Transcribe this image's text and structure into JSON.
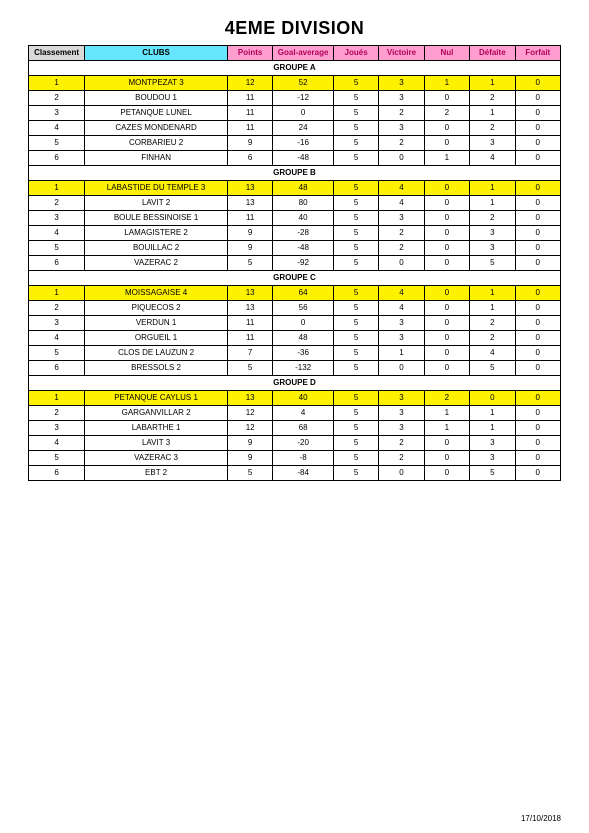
{
  "title": "4EME DIVISION",
  "footer_date": "17/10/2018",
  "headers": {
    "rank": "Classement",
    "club": "CLUBS",
    "points": "Points",
    "ga": "Goal-average",
    "played": "Joués",
    "win": "Victoire",
    "draw": "Nul",
    "loss": "Défaite",
    "forfeit": "Forfait"
  },
  "colors": {
    "header_rank_bg": "#d9d9d9",
    "header_club_bg": "#66e7ff",
    "header_stat_bg": "#ff9ecf",
    "header_stat_fg": "#b30059",
    "leader_bg": "#fff200",
    "border": "#000000",
    "background": "#ffffff"
  },
  "groups": [
    {
      "name": "GROUPE A",
      "rows": [
        {
          "rank": 1,
          "club": "MONTPEZAT 3",
          "pts": 12,
          "ga": 52,
          "j": 5,
          "v": 3,
          "n": 1,
          "d": 1,
          "f": 0,
          "leader": true
        },
        {
          "rank": 2,
          "club": "BOUDOU 1",
          "pts": 11,
          "ga": -12,
          "j": 5,
          "v": 3,
          "n": 0,
          "d": 2,
          "f": 0
        },
        {
          "rank": 3,
          "club": "PETANQUE LUNEL",
          "pts": 11,
          "ga": 0,
          "j": 5,
          "v": 2,
          "n": 2,
          "d": 1,
          "f": 0
        },
        {
          "rank": 4,
          "club": "CAZES MONDENARD",
          "pts": 11,
          "ga": 24,
          "j": 5,
          "v": 3,
          "n": 0,
          "d": 2,
          "f": 0
        },
        {
          "rank": 5,
          "club": "CORBARIEU 2",
          "pts": 9,
          "ga": -16,
          "j": 5,
          "v": 2,
          "n": 0,
          "d": 3,
          "f": 0
        },
        {
          "rank": 6,
          "club": "FINHAN",
          "pts": 6,
          "ga": -48,
          "j": 5,
          "v": 0,
          "n": 1,
          "d": 4,
          "f": 0
        }
      ]
    },
    {
      "name": "GROUPE B",
      "rows": [
        {
          "rank": 1,
          "club": "LABASTIDE DU TEMPLE 3",
          "pts": 13,
          "ga": 48,
          "j": 5,
          "v": 4,
          "n": 0,
          "d": 1,
          "f": 0,
          "leader": true
        },
        {
          "rank": 2,
          "club": "LAVIT 2",
          "pts": 13,
          "ga": 80,
          "j": 5,
          "v": 4,
          "n": 0,
          "d": 1,
          "f": 0
        },
        {
          "rank": 3,
          "club": "BOULE BESSINOISE 1",
          "pts": 11,
          "ga": 40,
          "j": 5,
          "v": 3,
          "n": 0,
          "d": 2,
          "f": 0
        },
        {
          "rank": 4,
          "club": "LAMAGISTERE 2",
          "pts": 9,
          "ga": -28,
          "j": 5,
          "v": 2,
          "n": 0,
          "d": 3,
          "f": 0
        },
        {
          "rank": 5,
          "club": "BOUILLAC 2",
          "pts": 9,
          "ga": -48,
          "j": 5,
          "v": 2,
          "n": 0,
          "d": 3,
          "f": 0
        },
        {
          "rank": 6,
          "club": "VAZERAC 2",
          "pts": 5,
          "ga": -92,
          "j": 5,
          "v": 0,
          "n": 0,
          "d": 5,
          "f": 0
        }
      ]
    },
    {
      "name": "GROUPE C",
      "rows": [
        {
          "rank": 1,
          "club": "MOISSAGAISE 4",
          "pts": 13,
          "ga": 64,
          "j": 5,
          "v": 4,
          "n": 0,
          "d": 1,
          "f": 0,
          "leader": true
        },
        {
          "rank": 2,
          "club": "PIQUECOS 2",
          "pts": 13,
          "ga": 56,
          "j": 5,
          "v": 4,
          "n": 0,
          "d": 1,
          "f": 0
        },
        {
          "rank": 3,
          "club": "VERDUN 1",
          "pts": 11,
          "ga": 0,
          "j": 5,
          "v": 3,
          "n": 0,
          "d": 2,
          "f": 0
        },
        {
          "rank": 4,
          "club": "ORGUEIL 1",
          "pts": 11,
          "ga": 48,
          "j": 5,
          "v": 3,
          "n": 0,
          "d": 2,
          "f": 0
        },
        {
          "rank": 5,
          "club": "CLOS DE LAUZUN 2",
          "pts": 7,
          "ga": -36,
          "j": 5,
          "v": 1,
          "n": 0,
          "d": 4,
          "f": 0
        },
        {
          "rank": 6,
          "club": "BRESSOLS 2",
          "pts": 5,
          "ga": -132,
          "j": 5,
          "v": 0,
          "n": 0,
          "d": 5,
          "f": 0
        }
      ]
    },
    {
      "name": "GROUPE D",
      "rows": [
        {
          "rank": 1,
          "club": "PETANQUE CAYLUS 1",
          "pts": 13,
          "ga": 40,
          "j": 5,
          "v": 3,
          "n": 2,
          "d": 0,
          "f": 0,
          "leader": true
        },
        {
          "rank": 2,
          "club": "GARGANVILLAR 2",
          "pts": 12,
          "ga": 4,
          "j": 5,
          "v": 3,
          "n": 1,
          "d": 1,
          "f": 0
        },
        {
          "rank": 3,
          "club": "LABARTHE 1",
          "pts": 12,
          "ga": 68,
          "j": 5,
          "v": 3,
          "n": 1,
          "d": 1,
          "f": 0
        },
        {
          "rank": 4,
          "club": "LAVIT 3",
          "pts": 9,
          "ga": -20,
          "j": 5,
          "v": 2,
          "n": 0,
          "d": 3,
          "f": 0
        },
        {
          "rank": 5,
          "club": "VAZERAC 3",
          "pts": 9,
          "ga": -8,
          "j": 5,
          "v": 2,
          "n": 0,
          "d": 3,
          "f": 0
        },
        {
          "rank": 6,
          "club": "EBT 2",
          "pts": 5,
          "ga": -84,
          "j": 5,
          "v": 0,
          "n": 0,
          "d": 5,
          "f": 0
        }
      ]
    }
  ]
}
